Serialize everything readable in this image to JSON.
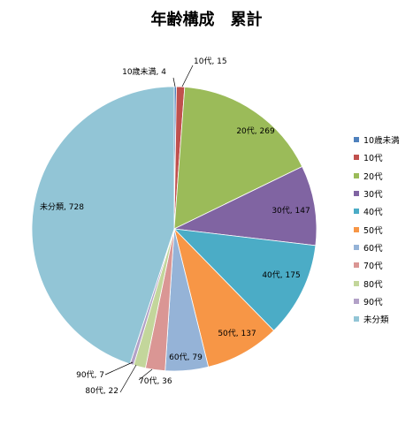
{
  "chart_data": {
    "type": "pie",
    "title": "年齢構成　累計",
    "legend_position": "right",
    "slices": [
      {
        "label": "10歳未満",
        "value": 4,
        "color": "#4F81BD",
        "data_label": "10歳未満, 4"
      },
      {
        "label": "10代",
        "value": 15,
        "color": "#C0504D",
        "data_label": "10代, 15"
      },
      {
        "label": "20代",
        "value": 269,
        "color": "#9BBB59",
        "data_label": "20代, 269"
      },
      {
        "label": "30代",
        "value": 147,
        "color": "#8064A2",
        "data_label": "30代, 147"
      },
      {
        "label": "40代",
        "value": 175,
        "color": "#4BACC6",
        "data_label": "40代, 175"
      },
      {
        "label": "50代",
        "value": 137,
        "color": "#F79646",
        "data_label": "50代, 137"
      },
      {
        "label": "60代",
        "value": 79,
        "color": "#95B3D7",
        "data_label": "60代, 79"
      },
      {
        "label": "70代",
        "value": 36,
        "color": "#DA9694",
        "data_label": "70代, 36"
      },
      {
        "label": "80代",
        "value": 22,
        "color": "#C3D69B",
        "data_label": "80代, 22"
      },
      {
        "label": "90代",
        "value": 7,
        "color": "#B2A1C7",
        "data_label": "90代, 7"
      },
      {
        "label": "未分類",
        "value": 728,
        "color": "#92C5D6",
        "data_label": "未分類, 728"
      }
    ]
  }
}
